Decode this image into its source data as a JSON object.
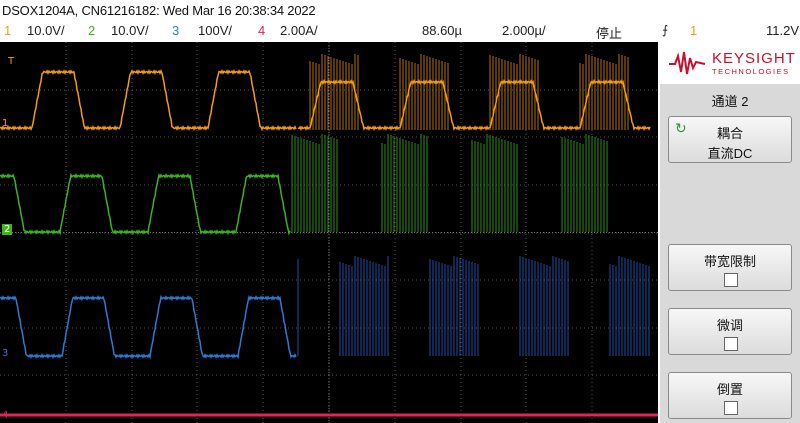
{
  "header": {
    "title": "DSOX1204A, CN61216182: Wed Mar 16 20:38:34 2022"
  },
  "channels": [
    {
      "num": "1",
      "scale": "10.0V/",
      "color": "#f39c12"
    },
    {
      "num": "2",
      "scale": "10.0V/",
      "color": "#3cb41e"
    },
    {
      "num": "3",
      "scale": "100V/",
      "color": "#2d7ad6"
    },
    {
      "num": "4",
      "scale": "2.00A/",
      "color": "#e0255a"
    }
  ],
  "timebase": {
    "delay": "88.60µ",
    "scale": "2.000µ/",
    "run_state": "停止"
  },
  "trigger": {
    "icon": "rising-edge-icon",
    "source": "1",
    "level": "11.2V"
  },
  "markers": {
    "trig": "T",
    "ch1": "1",
    "ch2": "2",
    "ch3": "3",
    "ch4": "4"
  },
  "panel": {
    "brand": "KEYSIGHT",
    "tech": "TECHNOLOGIES",
    "title": "通道 2",
    "coupling_label": "耦合",
    "coupling_value": "直流DC",
    "bw_limit_label": "带宽限制",
    "bw_limit_checked": false,
    "fine_label": "微调",
    "fine_checked": false,
    "invert_label": "倒置",
    "invert_checked": false
  }
}
